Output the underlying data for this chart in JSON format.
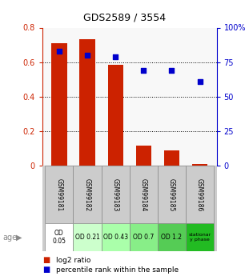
{
  "title": "GDS2589 / 3554",
  "samples": [
    "GSM99181",
    "GSM99182",
    "GSM99183",
    "GSM99184",
    "GSM99185",
    "GSM99186"
  ],
  "log2_ratio": [
    0.71,
    0.735,
    0.585,
    0.115,
    0.09,
    0.01
  ],
  "percentile_rank": [
    0.83,
    0.8,
    0.79,
    0.69,
    0.69,
    0.61
  ],
  "age_labels": [
    "OD\n0.05",
    "OD 0.21",
    "OD 0.43",
    "OD 0.7",
    "OD 1.2",
    "stationar\ny phase"
  ],
  "age_colors": [
    "#ffffff",
    "#ccffcc",
    "#aaffaa",
    "#88ee88",
    "#55cc55",
    "#22bb22"
  ],
  "sample_label_bg": "#cccccc",
  "bar_color": "#cc2200",
  "dot_color": "#0000cc",
  "left_ylim": [
    0,
    0.8
  ],
  "right_ylim": [
    0,
    1.0
  ],
  "left_yticks": [
    0,
    0.2,
    0.4,
    0.6,
    0.8
  ],
  "right_yticks": [
    0,
    0.25,
    0.5,
    0.75,
    1.0
  ],
  "right_yticklabels": [
    "0",
    "25",
    "50",
    "75",
    "100%"
  ],
  "left_yticklabels": [
    "0",
    "0.2",
    "0.4",
    "0.6",
    "0.8"
  ],
  "left_tick_color": "#cc2200",
  "right_tick_color": "#0000cc",
  "background_color": "#ffffff",
  "plot_bg": "#f8f8f8"
}
